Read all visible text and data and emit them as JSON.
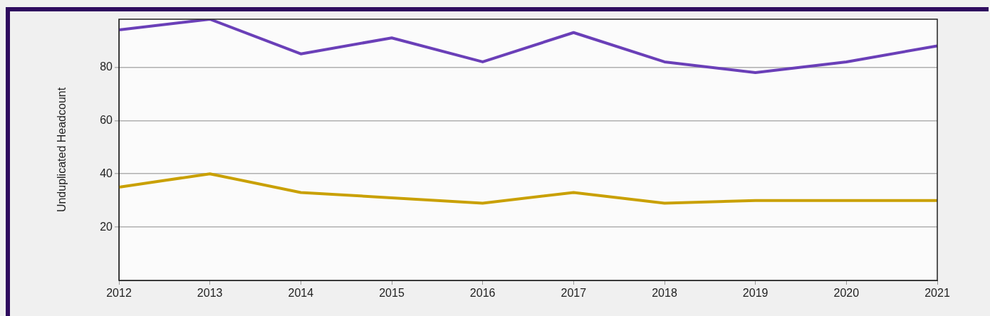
{
  "chart_data": {
    "type": "line",
    "ylabel": "Unduplicated Headcount",
    "categories": [
      "2012",
      "2013",
      "2014",
      "2015",
      "2016",
      "2017",
      "2018",
      "2019",
      "2020",
      "2021"
    ],
    "series": [
      {
        "color": "#6a3fb8",
        "values": [
          94,
          98,
          85,
          91,
          82,
          93,
          82,
          78,
          82,
          88
        ]
      },
      {
        "color": "#c9a000",
        "values": [
          35,
          40,
          33,
          31,
          29,
          33,
          29,
          30,
          30,
          30
        ]
      }
    ],
    "ylim": [
      0,
      98
    ],
    "yticks": [
      20,
      40,
      60,
      80
    ],
    "grid": "y",
    "legend": false,
    "marker": "none",
    "line_style": "solid"
  }
}
